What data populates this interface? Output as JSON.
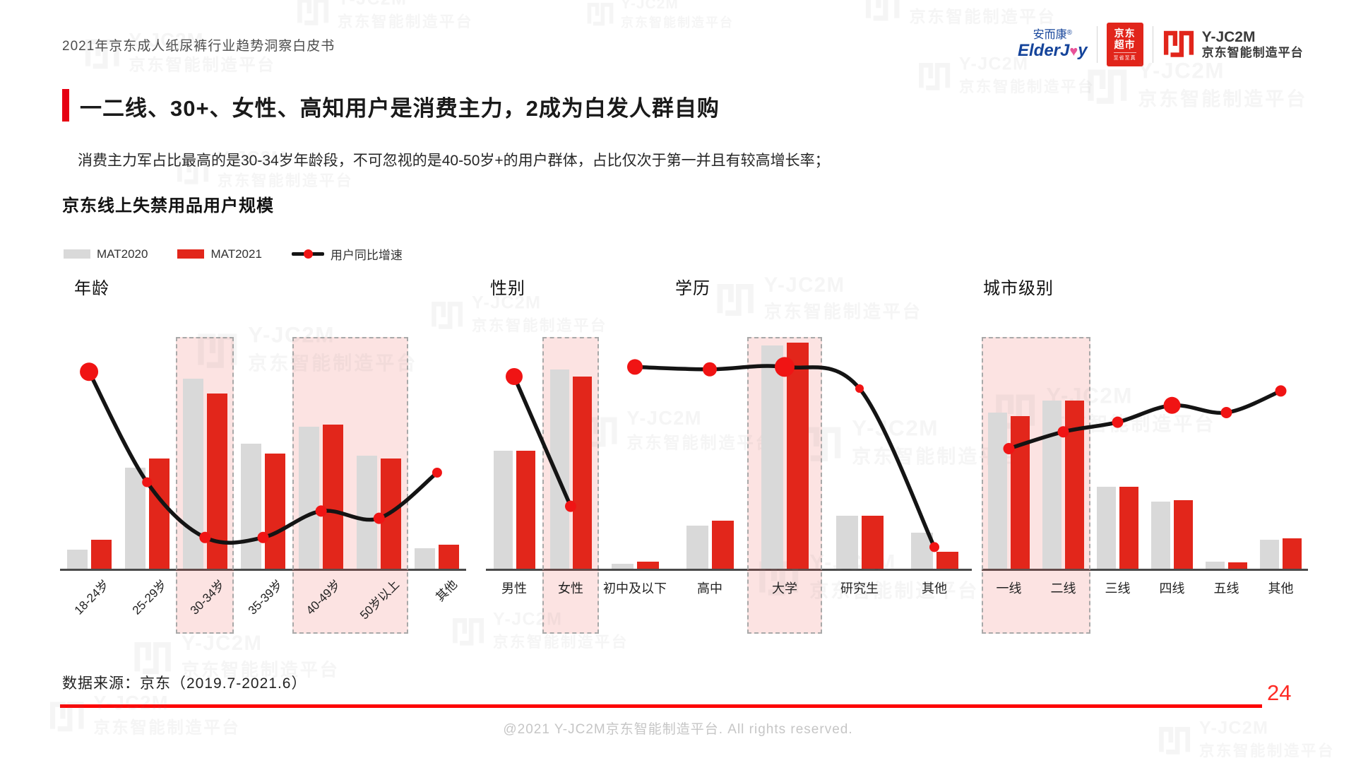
{
  "page": {
    "header_title": "2021年京东成人纸尿裤行业趋势洞察白皮书",
    "title": "一二线、30+、女性、高知用户是消费主力，2成为白发人群自购",
    "subtitle": "消费主力军占比最高的是30-34岁年龄段，不可忽视的是40-50岁+的用户群体，占比仅次于第一并且有较高增长率；",
    "section_title": "京东线上失禁用品用户规模",
    "source": "数据来源：京东（2019.7-2021.6）",
    "page_number": "24",
    "copyright": "@2021 Y-JC2M京东智能制造平台. All rights reserved."
  },
  "logos": {
    "elderjoy_cn": "安而康",
    "elderjoy_reg": "®",
    "elderjoy_en_part1": "ElderJ",
    "elderjoy_en_heart": "♥",
    "elderjoy_en_part2": "y",
    "jd_market_line1": "京东",
    "jd_market_line2": "超市",
    "jd_market_sub": "至省至真",
    "yjc2m_name": "Y-JC2M",
    "yjc2m_sub": "京东智能制造平台"
  },
  "watermark": {
    "line1": "Y-JC2M",
    "line2": "京东智能制造平台"
  },
  "legend": {
    "items": [
      {
        "label": "MAT2020",
        "type": "bar",
        "color": "#D9D9D9"
      },
      {
        "label": "MAT2021",
        "type": "bar",
        "color": "#E2261B"
      },
      {
        "label": "用户同比增速",
        "type": "line",
        "color": "#141414",
        "dot_color": "#F01414"
      }
    ]
  },
  "colors": {
    "accent": "#E60012",
    "bar_2020": "#D9D9D9",
    "bar_2021": "#E2261B",
    "growth_line": "#141414",
    "growth_dot": "#F01414",
    "highlight_fill": "#F8DCDC",
    "bottom_rule": "#FE0505"
  },
  "chart_data": [
    {
      "type": "bar+line",
      "title": "年龄",
      "note": "no numeric axis shown; values are relative heights in % of plot area",
      "categories": [
        "18-24岁",
        "25-29岁",
        "30-34岁",
        "35-39岁",
        "40-49岁",
        "50岁以上",
        "其他"
      ],
      "series": [
        {
          "name": "MAT2020",
          "values": [
            8,
            42,
            79,
            52,
            59,
            47,
            8.5
          ]
        },
        {
          "name": "MAT2021",
          "values": [
            12,
            46,
            73,
            48,
            60,
            46,
            10
          ]
        }
      ],
      "line": {
        "name": "用户同比增速",
        "values": [
          82,
          36,
          13,
          13,
          24,
          21,
          40
        ],
        "dot_radii": [
          13,
          7,
          8,
          8,
          8,
          8,
          7
        ]
      },
      "highlight_ranges": [
        {
          "from": 2,
          "to": 2
        },
        {
          "from": 4,
          "to": 5
        }
      ]
    },
    {
      "type": "bar+line",
      "title": "性别",
      "note": "no numeric axis shown; values are relative heights in % of plot area",
      "categories": [
        "男性",
        "女性"
      ],
      "series": [
        {
          "name": "MAT2020",
          "values": [
            49,
            83
          ]
        },
        {
          "name": "MAT2021",
          "values": [
            49,
            80
          ]
        }
      ],
      "line": {
        "name": "用户同比增速",
        "values": [
          80,
          26
        ],
        "dot_radii": [
          12,
          8
        ]
      },
      "highlight_ranges": [
        {
          "from": 1,
          "to": 1
        }
      ]
    },
    {
      "type": "bar+line",
      "title": "学历",
      "note": "no numeric axis shown; values are relative heights in % of plot area",
      "categories": [
        "初中及以下",
        "高中",
        "大学",
        "研究生",
        "其他"
      ],
      "series": [
        {
          "name": "MAT2020",
          "values": [
            2,
            18,
            93,
            22,
            15
          ]
        },
        {
          "name": "MAT2021",
          "values": [
            3,
            20,
            94,
            22,
            7
          ]
        }
      ],
      "line": {
        "name": "用户同比增速",
        "values": [
          84,
          83,
          84,
          75,
          9
        ],
        "dot_radii": [
          11,
          10,
          14,
          6,
          7
        ]
      },
      "highlight_ranges": [
        {
          "from": 2,
          "to": 2
        }
      ]
    },
    {
      "type": "bar+line",
      "title": "城市级别",
      "note": "no numeric axis shown; values are relative heights in % of plot area",
      "categories": [
        "一线",
        "二线",
        "三线",
        "四线",
        "五线",
        "其他"
      ],
      "series": [
        {
          "name": "MAT2020",
          "values": [
            65,
            70,
            34,
            28,
            3,
            12
          ]
        },
        {
          "name": "MAT2021",
          "values": [
            63.5,
            70,
            34,
            28.5,
            2.6,
            12.6
          ]
        }
      ],
      "line": {
        "name": "用户同比增速",
        "values": [
          50,
          57,
          61,
          68,
          65,
          74
        ],
        "dot_radii": [
          8,
          8,
          8,
          12,
          8,
          8
        ]
      },
      "highlight_ranges": [
        {
          "from": 0,
          "to": 1
        }
      ]
    }
  ]
}
